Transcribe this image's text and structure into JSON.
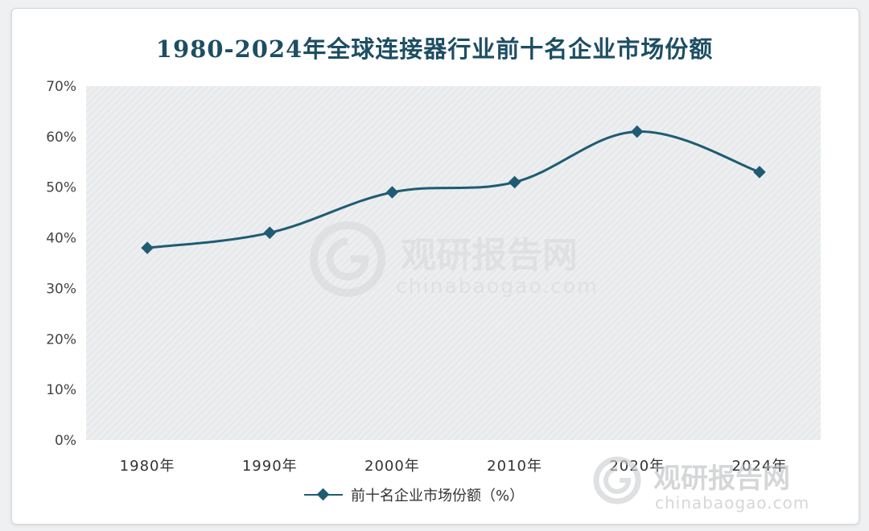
{
  "chart_data": {
    "type": "line",
    "title": "1980-2024年全球连接器行业前十名企业市场份额",
    "categories": [
      "1980年",
      "1990年",
      "2000年",
      "2010年",
      "2020年",
      "2024年"
    ],
    "series": [
      {
        "name": "前十名企业市场份额（%）",
        "values": [
          38,
          41,
          49,
          51,
          61,
          53
        ]
      }
    ],
    "ylim": [
      0,
      70
    ],
    "yticks": [
      "0%",
      "10%",
      "20%",
      "30%",
      "40%",
      "50%",
      "60%",
      "70%"
    ],
    "grid": false,
    "smooth": true,
    "legend_position": "bottom",
    "colors": {
      "line": "#1f5c73",
      "title": "#1d4e63",
      "plot_bg": "#eceef0"
    }
  },
  "watermark": {
    "brand": "观研报告网",
    "url": "chinabaogao.com"
  }
}
